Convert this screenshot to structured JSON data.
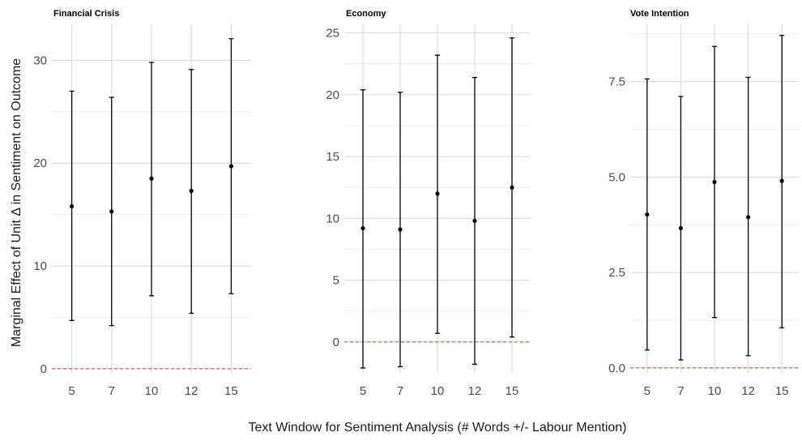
{
  "chart_data": {
    "type": "errorbar",
    "xlabel": "Text Window for Sentiment Analysis (# Words +/- Labour Mention)",
    "ylabel": "Marginal Effect of Unit Δ in Sentiment on Outcome",
    "categories": [
      "5",
      "7",
      "10",
      "12",
      "15"
    ],
    "reference_line": {
      "y": 0,
      "color": "#e0302f",
      "style": "dashed"
    },
    "grid": true,
    "panels": [
      {
        "title": "Financial Crisis",
        "ylim": [
          -0.4,
          33.5
        ],
        "yticks": [
          0,
          10,
          20,
          30
        ],
        "ytick_labels": [
          "0",
          "10",
          "20",
          "30"
        ],
        "points": [
          {
            "x": "5",
            "estimate": 15.8,
            "lower": 4.7,
            "upper": 27.0
          },
          {
            "x": "7",
            "estimate": 15.3,
            "lower": 4.2,
            "upper": 26.4
          },
          {
            "x": "10",
            "estimate": 18.5,
            "lower": 7.1,
            "upper": 29.8
          },
          {
            "x": "12",
            "estimate": 17.3,
            "lower": 5.4,
            "upper": 29.1
          },
          {
            "x": "15",
            "estimate": 19.7,
            "lower": 7.3,
            "upper": 32.1
          }
        ]
      },
      {
        "title": "Economy",
        "ylim": [
          -2.5,
          25.7
        ],
        "yticks": [
          0,
          5,
          10,
          15,
          20,
          25
        ],
        "ytick_labels": [
          "0",
          "5",
          "10",
          "15",
          "20",
          "25"
        ],
        "points": [
          {
            "x": "5",
            "estimate": 9.2,
            "lower": -2.1,
            "upper": 20.4
          },
          {
            "x": "7",
            "estimate": 9.1,
            "lower": -2.0,
            "upper": 20.2
          },
          {
            "x": "10",
            "estimate": 12.0,
            "lower": 0.7,
            "upper": 23.2
          },
          {
            "x": "12",
            "estimate": 9.8,
            "lower": -1.8,
            "upper": 21.4
          },
          {
            "x": "15",
            "estimate": 12.5,
            "lower": 0.4,
            "upper": 24.6
          }
        ]
      },
      {
        "title": "Vote Intention",
        "ylim": [
          -0.13,
          9.0
        ],
        "yticks": [
          0,
          2.5,
          5,
          7.5
        ],
        "ytick_labels": [
          "0.0",
          "2.5",
          "5.0",
          "7.5"
        ],
        "points": [
          {
            "x": "5",
            "estimate": 4.02,
            "lower": 0.47,
            "upper": 7.57
          },
          {
            "x": "7",
            "estimate": 3.66,
            "lower": 0.21,
            "upper": 7.11
          },
          {
            "x": "10",
            "estimate": 4.87,
            "lower": 1.32,
            "upper": 8.42
          },
          {
            "x": "12",
            "estimate": 3.95,
            "lower": 0.32,
            "upper": 7.61
          },
          {
            "x": "15",
            "estimate": 4.9,
            "lower": 1.05,
            "upper": 8.71
          }
        ]
      }
    ]
  }
}
